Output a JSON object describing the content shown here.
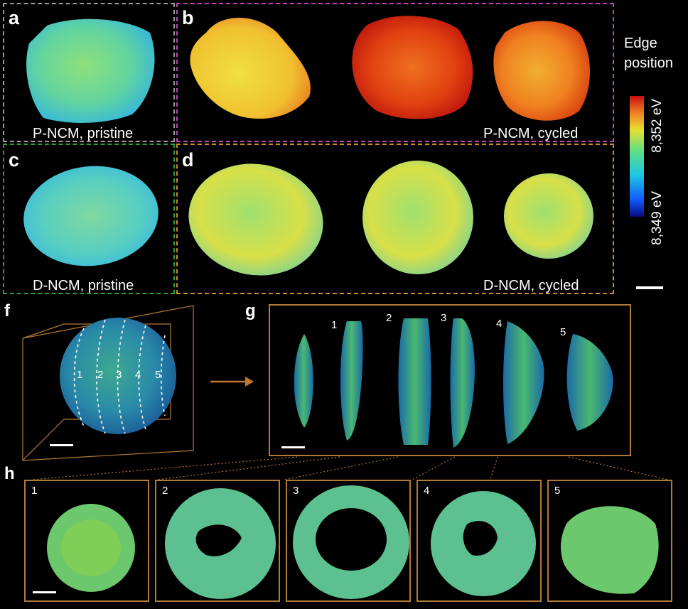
{
  "panels": {
    "a": {
      "letter": "a",
      "caption": "P-NCM, pristine"
    },
    "b": {
      "letter": "b",
      "caption": "P-NCM, cycled"
    },
    "c": {
      "letter": "c",
      "caption": "D-NCM, pristine"
    },
    "d": {
      "letter": "d",
      "caption": "D-NCM, cycled"
    },
    "f": {
      "letter": "f",
      "slice_labels": [
        "1",
        "2",
        "3",
        "4",
        "5"
      ]
    },
    "g": {
      "letter": "g",
      "slice_labels": [
        "1",
        "2",
        "3",
        "4",
        "5"
      ]
    },
    "h": {
      "letter": "h",
      "subpanels": [
        "1",
        "2",
        "3",
        "4",
        "5"
      ]
    }
  },
  "colorbar": {
    "title_line1": "Edge",
    "title_line2": "position",
    "max_label": "8,352 eV",
    "min_label": "8,349 eV",
    "colors": [
      "#0a0a80",
      "#1060ff",
      "#20c8e0",
      "#60e080",
      "#e8e030",
      "#f08020",
      "#c81010"
    ]
  },
  "colors": {
    "panel_a_border": "#9a9a9a",
    "panel_b_border": "#c040c0",
    "panel_c_border": "#30a030",
    "panel_d_border": "#d08a20",
    "tan_frame": "#b07a38",
    "arrow": "#c07830"
  }
}
